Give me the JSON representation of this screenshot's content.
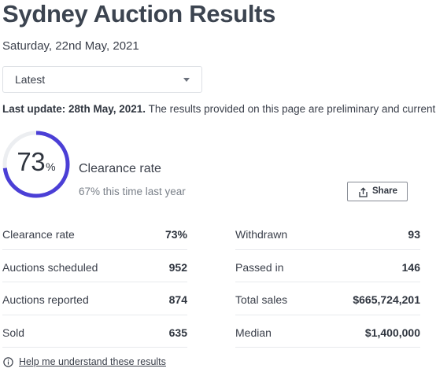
{
  "header": {
    "title": "Sydney Auction Results",
    "date": "Saturday, 22nd May, 2021"
  },
  "filter": {
    "selected": "Latest"
  },
  "update": {
    "label": "Last update: 28th May, 2021.",
    "text": " The results provided on this page are preliminary and current"
  },
  "clearance": {
    "value": "73",
    "unit": "%",
    "fraction": 0.73,
    "label": "Clearance rate",
    "comparison": "67% this time last year",
    "accent_color": "#4b3fd6"
  },
  "share": {
    "label": "Share",
    "icon": "share-icon"
  },
  "stats": {
    "left": [
      {
        "label": "Clearance rate",
        "value": "73%"
      },
      {
        "label": "Auctions scheduled",
        "value": "952"
      },
      {
        "label": "Auctions reported",
        "value": "874"
      },
      {
        "label": "Sold",
        "value": "635"
      }
    ],
    "right": [
      {
        "label": "Withdrawn",
        "value": "93"
      },
      {
        "label": "Passed in",
        "value": "146"
      },
      {
        "label": "Total sales",
        "value": "$665,724,201"
      },
      {
        "label": "Median",
        "value": "$1,400,000"
      }
    ]
  },
  "help": {
    "label": "Help me understand these results",
    "icon": "info-icon"
  }
}
